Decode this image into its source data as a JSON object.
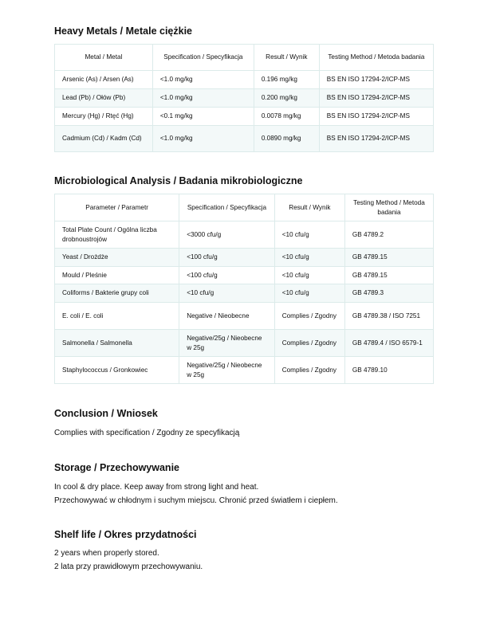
{
  "heavy_metals": {
    "title": "Heavy Metals / Metale ciężkie",
    "headers": [
      "Metal / Metal",
      "Specification / Specyfikacja",
      "Result / Wynik",
      "Testing Method / Metoda badania"
    ],
    "rows": [
      [
        "Arsenic (As) / Arsen (As)",
        "<1.0 mg/kg",
        "0.196 mg/kg",
        "BS EN ISO 17294-2/ICP-MS"
      ],
      [
        "Lead (Pb) / Ołów (Pb)",
        "<1.0 mg/kg",
        "0.200 mg/kg",
        "BS EN ISO 17294-2/ICP-MS"
      ],
      [
        "Mercury (Hg) / Rtęć (Hg)",
        "<0.1 mg/kg",
        "0.0078 mg/kg",
        "BS EN ISO 17294-2/ICP-MS"
      ],
      [
        "Cadmium (Cd) / Kadm (Cd)",
        "<1.0 mg/kg",
        "0.0890 mg/kg",
        "BS EN ISO 17294-2/ICP-MS"
      ]
    ]
  },
  "micro": {
    "title": "Microbiological Analysis / Badania mikrobiologiczne",
    "headers": [
      "Parameter / Parametr",
      "Specification / Specyfikacja",
      "Result / Wynik",
      "Testing Method / Metoda badania"
    ],
    "rows": [
      [
        "Total Plate Count / Ogólna liczba drobnoustrojów",
        "<3000 cfu/g",
        "<10 cfu/g",
        "GB 4789.2"
      ],
      [
        "Yeast / Drożdże",
        "<100 cfu/g",
        "<10 cfu/g",
        "GB 4789.15"
      ],
      [
        "Mould / Pleśnie",
        "<100 cfu/g",
        "<10 cfu/g",
        "GB 4789.15"
      ],
      [
        "Coliforms / Bakterie grupy coli",
        "<10 cfu/g",
        "<10 cfu/g",
        "GB 4789.3"
      ],
      [
        "E. coli / E. coli",
        "Negative / Nieobecne",
        "Complies / Zgodny",
        "GB 4789.38 / ISO 7251"
      ],
      [
        "Salmonella / Salmonella",
        "Negative/25g / Nieobecne w 25g",
        "Complies / Zgodny",
        "GB 4789.4 / ISO 6579-1"
      ],
      [
        "Staphylococcus / Gronkowiec",
        "Negative/25g / Nieobecne w 25g",
        "Complies / Zgodny",
        "GB 4789.10"
      ]
    ]
  },
  "conclusion": {
    "title": "Conclusion / Wniosek",
    "lines": [
      "Complies with specification / Zgodny ze specyfikacją"
    ]
  },
  "storage": {
    "title": "Storage / Przechowywanie",
    "lines": [
      "In cool & dry place. Keep away from strong light and heat.",
      "Przechowywać w chłodnym i suchym miejscu. Chronić przed światłem i ciepłem."
    ]
  },
  "shelf_life": {
    "title": "Shelf life / Okres przydatności",
    "lines": [
      "2 years when properly stored.",
      "2 lata przy prawidłowym przechowywaniu."
    ]
  }
}
